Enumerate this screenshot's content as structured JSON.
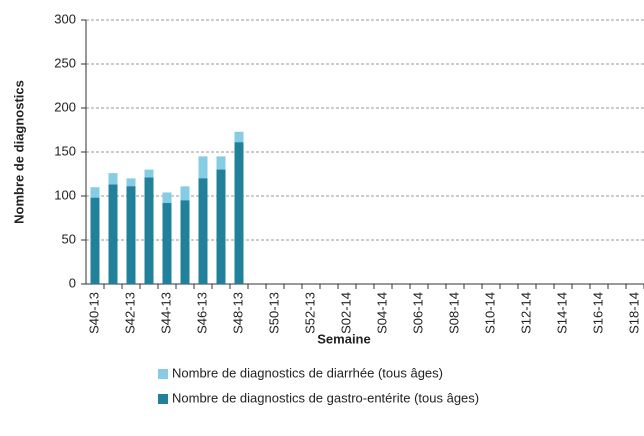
{
  "chart_data": {
    "type": "bar",
    "x_label": "Semaine",
    "y_label": "Nombre de diagnostics",
    "categories": [
      "S40-13",
      null,
      "S42-13",
      null,
      "S44-13",
      null,
      "S46-13",
      null,
      "S48-13",
      null,
      "S50-13",
      null,
      "S52-13",
      null,
      "S02-14",
      null,
      "S04-14",
      null,
      "S06-14",
      null,
      "S08-14",
      null,
      "S10-14",
      null,
      "S12-14",
      null,
      "S14-14",
      null,
      "S16-14",
      null,
      "S18-14"
    ],
    "series": [
      {
        "name": "Nombre de diagnostics de diarrhée (tous âges)",
        "color": "#86cde3",
        "values": [
          110,
          126,
          120,
          130,
          104,
          111,
          145,
          145,
          173,
          null,
          null,
          null,
          null,
          null,
          null,
          null,
          null,
          null,
          null,
          null,
          null,
          null,
          null,
          null,
          null,
          null,
          null,
          null,
          null,
          null,
          null
        ]
      },
      {
        "name": "Nombre de diagnostics de gastro-entérite (tous âges)",
        "color": "#21809a",
        "values": [
          98,
          113,
          111,
          121,
          92,
          95,
          120,
          130,
          161,
          null,
          null,
          null,
          null,
          null,
          null,
          null,
          null,
          null,
          null,
          null,
          null,
          null,
          null,
          null,
          null,
          null,
          null,
          null,
          null,
          null,
          null
        ]
      }
    ],
    "ylim": [
      0,
      300
    ],
    "yticks": [
      0,
      50,
      100,
      150,
      200,
      250,
      300
    ],
    "grid": true
  }
}
